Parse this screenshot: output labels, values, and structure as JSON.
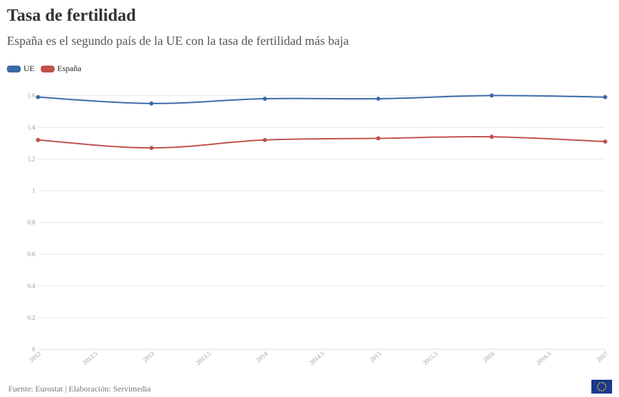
{
  "title": "Tasa de fertilidad",
  "subtitle": "España es el segundo país de la UE con la tasa de fertilidad más baja",
  "footer": "Fuente: Eurostat | Elaboración: Servimedia",
  "logo": "eu-flag-logo",
  "chart_data": {
    "type": "line",
    "x": [
      2012,
      2013,
      2014,
      2015,
      2016,
      2017
    ],
    "x_ticks": [
      "2012",
      "2012.5",
      "2013",
      "2013.5",
      "2014",
      "2014.5",
      "2015",
      "2015.5",
      "2016",
      "2016.5",
      "2017"
    ],
    "y_ticks": [
      "0",
      "0.2",
      "0.4",
      "0.6",
      "0.8",
      "1",
      "1.2",
      "1.4",
      "1.6"
    ],
    "xlim": [
      2012,
      2017
    ],
    "ylim": [
      0,
      1.68
    ],
    "grid": true,
    "legend_position": "top-left",
    "series": [
      {
        "name": "UE",
        "color": "#3a6aa6",
        "values": [
          1.59,
          1.55,
          1.58,
          1.58,
          1.6,
          1.59
        ]
      },
      {
        "name": "España",
        "color": "#c0504d",
        "values": [
          1.32,
          1.27,
          1.32,
          1.33,
          1.34,
          1.31
        ]
      }
    ]
  }
}
